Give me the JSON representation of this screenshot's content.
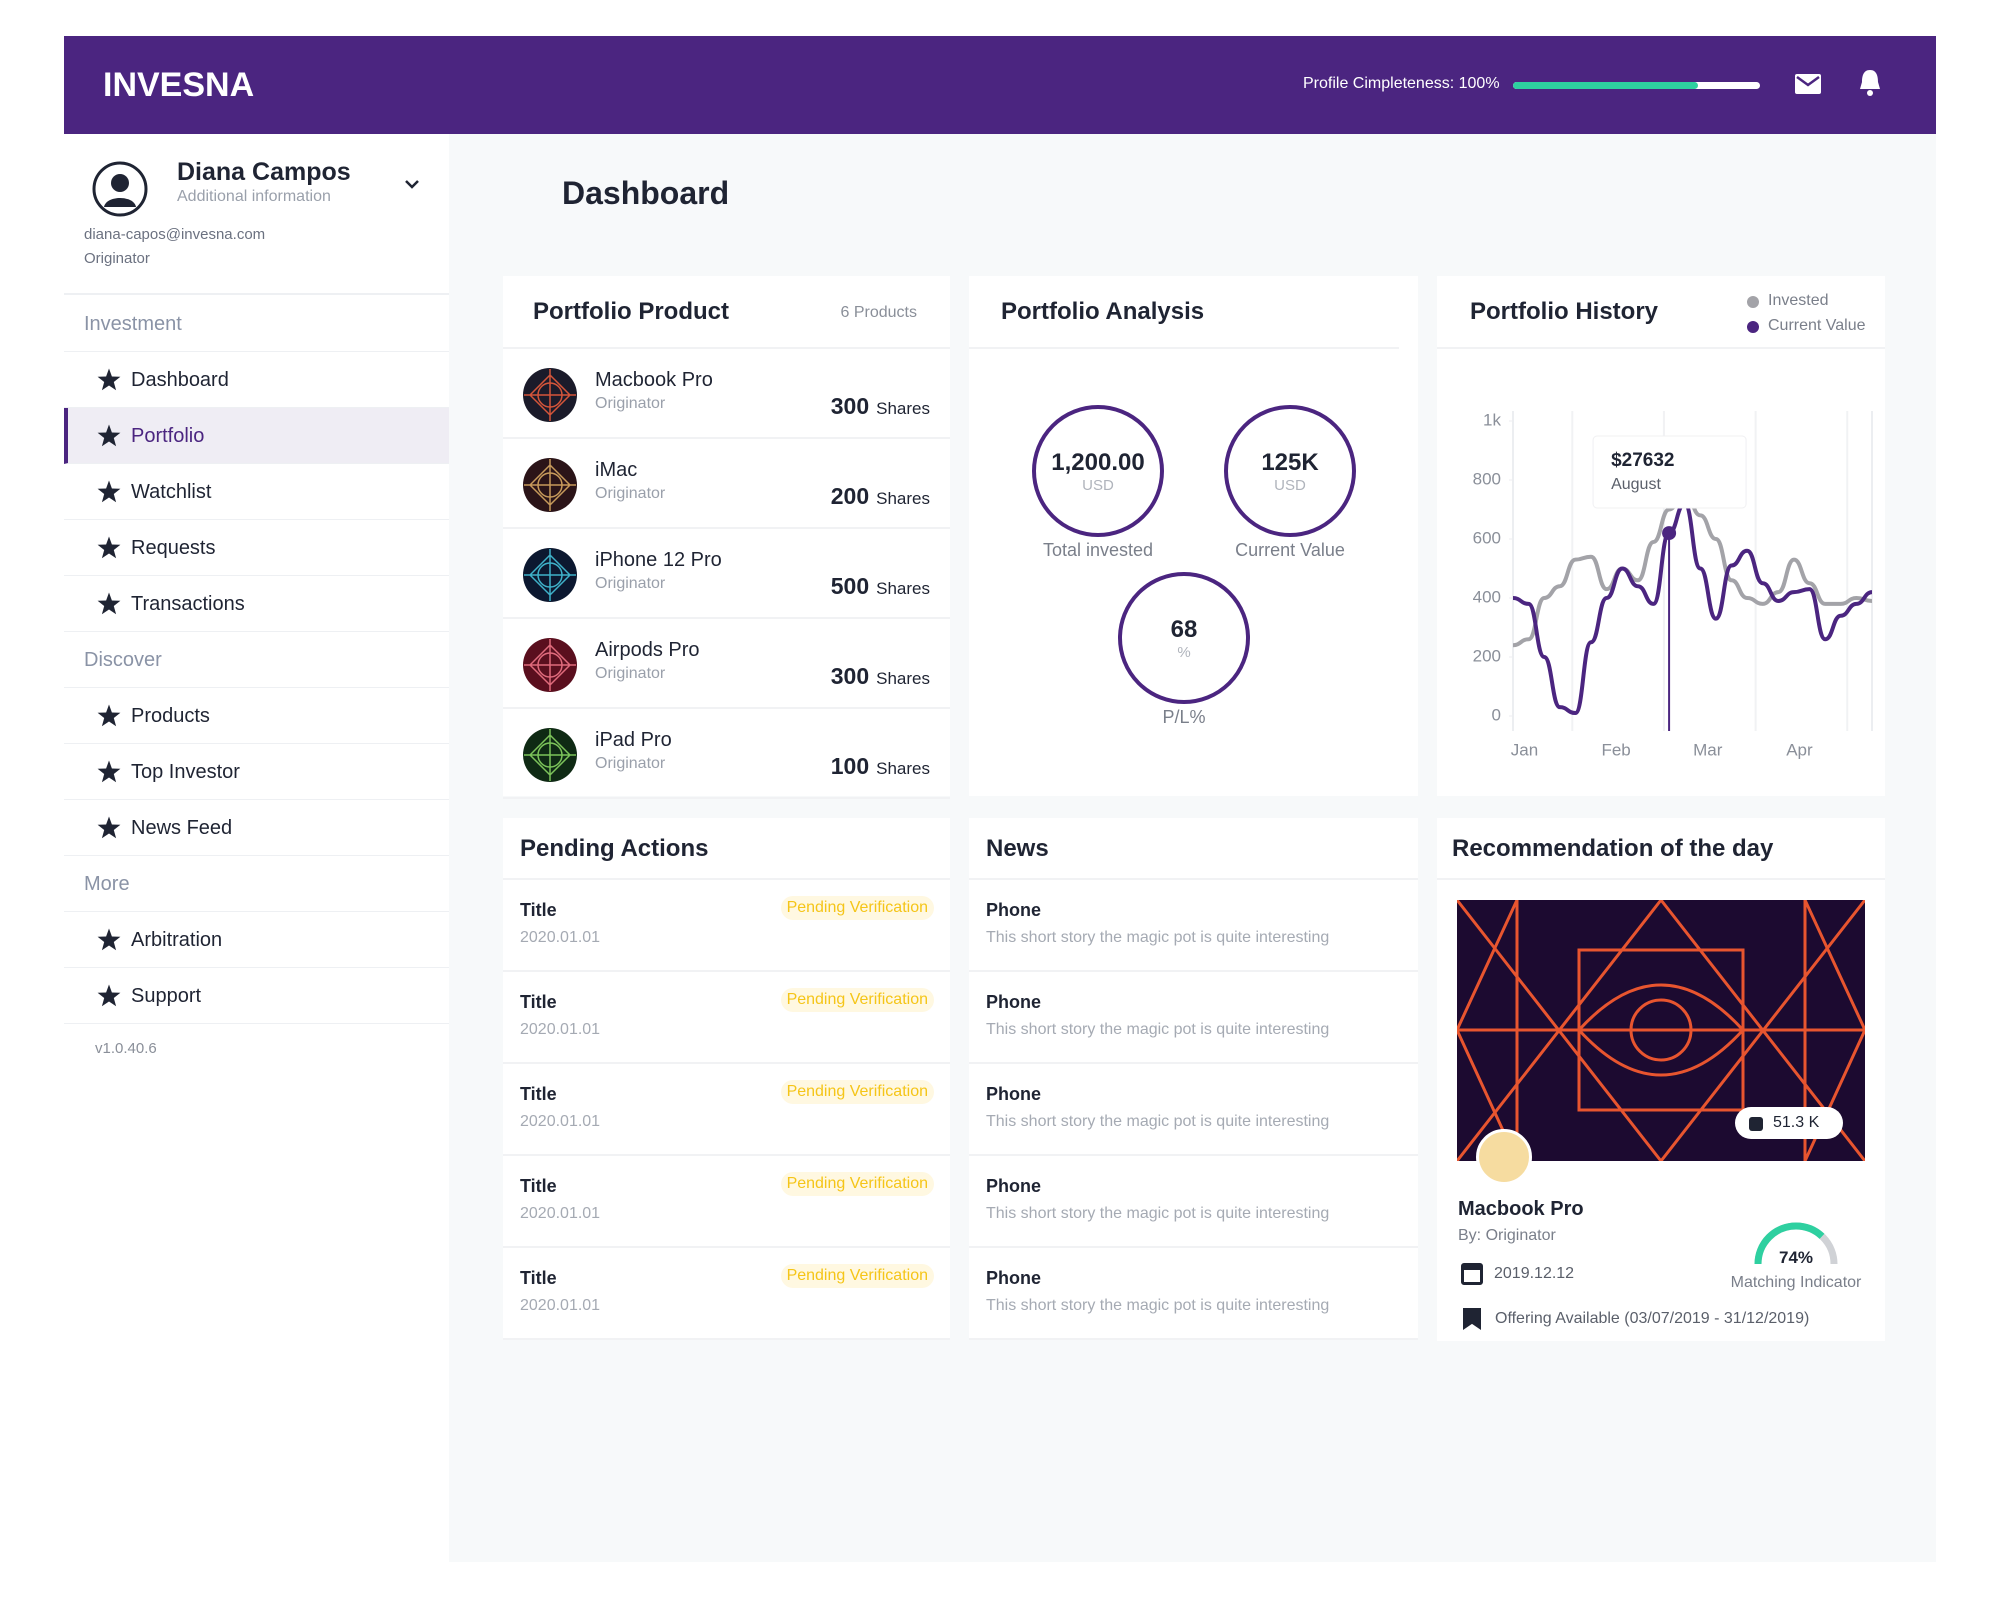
{
  "header": {
    "logo": "INVESNA",
    "profile_label": "Profile Cimpleteness: 100%"
  },
  "user": {
    "name": "Diana Campos",
    "subtitle": "Additional information",
    "email": "diana-capos@invesna.com",
    "role": "Originator"
  },
  "nav": [
    {
      "section": "Investment",
      "items": [
        {
          "label": "Dashboard"
        },
        {
          "label": "Portfolio",
          "active": true
        },
        {
          "label": "Watchlist"
        },
        {
          "label": "Requests"
        },
        {
          "label": "Transactions"
        }
      ]
    },
    {
      "section": "Discover",
      "items": [
        {
          "label": "Products"
        },
        {
          "label": "Top Investor"
        },
        {
          "label": "News Feed"
        }
      ]
    },
    {
      "section": "More",
      "items": [
        {
          "label": "Arbitration"
        },
        {
          "label": "Support"
        }
      ]
    }
  ],
  "version": "v1.0.40.6",
  "page_title": "Dashboard",
  "portfolio_product": {
    "title": "Portfolio Product",
    "count": "6 Products",
    "items": [
      {
        "name": "Macbook Pro",
        "role": "Originator",
        "shares": 300,
        "unit": "Shares"
      },
      {
        "name": "iMac",
        "role": "Originator",
        "shares": 200,
        "unit": "Shares"
      },
      {
        "name": "iPhone 12 Pro",
        "role": "Originator",
        "shares": 500,
        "unit": "Shares"
      },
      {
        "name": "Airpods Pro",
        "role": "Originator",
        "shares": 300,
        "unit": "Shares"
      },
      {
        "name": "iPad Pro",
        "role": "Originator",
        "shares": 100,
        "unit": "Shares"
      }
    ]
  },
  "portfolio_analysis": {
    "title": "Portfolio Analysis",
    "metrics": [
      {
        "value": "1,200.00",
        "unit": "USD",
        "label": "Total invested"
      },
      {
        "value": "125K",
        "unit": "USD",
        "label": "Current Value"
      },
      {
        "value": "68",
        "unit": "%",
        "label": "P/L%"
      }
    ]
  },
  "portfolio_history": {
    "type": "line",
    "title": "Portfolio History",
    "categories": [
      "Jan",
      "Feb",
      "Mar",
      "Apr"
    ],
    "series": [
      {
        "name": "Invested",
        "color": "#a3a3a8",
        "values": [
          240,
          260,
          400,
          440,
          530,
          540,
          430,
          500,
          460,
          590,
          700,
          760,
          680,
          600,
          460,
          400,
          380,
          420,
          530,
          450,
          380,
          380,
          400,
          390
        ]
      },
      {
        "name": "Current Value",
        "color": "#4b2580",
        "values": [
          400,
          380,
          200,
          30,
          10,
          250,
          400,
          500,
          440,
          380,
          620,
          720,
          500,
          330,
          510,
          560,
          450,
          390,
          420,
          430,
          260,
          340,
          380,
          420
        ]
      }
    ],
    "ylim": [
      0,
      1000
    ],
    "yticks": [
      0,
      200,
      400,
      600,
      800,
      {
        "value": 1000,
        "label": "1k"
      }
    ],
    "tooltip": {
      "value": "$27632",
      "label": "August"
    }
  },
  "pending_actions": {
    "title": "Pending Actions",
    "items": [
      {
        "title": "Title",
        "status": "Pending Verification",
        "date": "2020.01.01"
      },
      {
        "title": "Title",
        "status": "Pending Verification",
        "date": "2020.01.01"
      },
      {
        "title": "Title",
        "status": "Pending Verification",
        "date": "2020.01.01"
      },
      {
        "title": "Title",
        "status": "Pending Verification",
        "date": "2020.01.01"
      },
      {
        "title": "Title",
        "status": "Pending Verification",
        "date": "2020.01.01"
      }
    ]
  },
  "news": {
    "title": "News",
    "items": [
      {
        "title": "Phone",
        "text": "This short story the magic pot is quite interesting"
      },
      {
        "title": "Phone",
        "text": "This short story the magic pot is quite interesting"
      },
      {
        "title": "Phone",
        "text": "This short story the magic pot is quite interesting"
      },
      {
        "title": "Phone",
        "text": "This short story the magic pot is quite interesting"
      },
      {
        "title": "Phone",
        "text": "This short story the magic pot is quite interesting"
      }
    ]
  },
  "recommendation": {
    "title": "Recommendation of the day",
    "badge": "51.3 K",
    "name": "Macbook Pro",
    "by": "By: Originator",
    "date": "2019.12.12",
    "matching": {
      "value": 74,
      "label": "74%"
    },
    "matching_label": "Matching Indicator",
    "offering": "Offering Available (03/07/2019 - 31/12/2019)"
  }
}
